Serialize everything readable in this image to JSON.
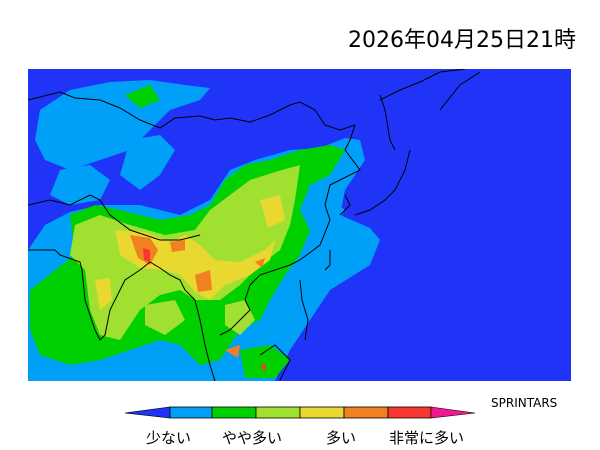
{
  "title": "2026年04月25日21時",
  "credit": "SPRINTARS",
  "legend": {
    "labels": [
      "少ない",
      "やや多い",
      "多い",
      "非常に多い"
    ],
    "colors": [
      "#2034f8",
      "#00a0f8",
      "#00d000",
      "#a0e030",
      "#e8d830",
      "#f08020",
      "#f83830",
      "#f01890"
    ]
  },
  "map": {
    "background_color": "#2034f8",
    "coastline_color": "#000000"
  }
}
